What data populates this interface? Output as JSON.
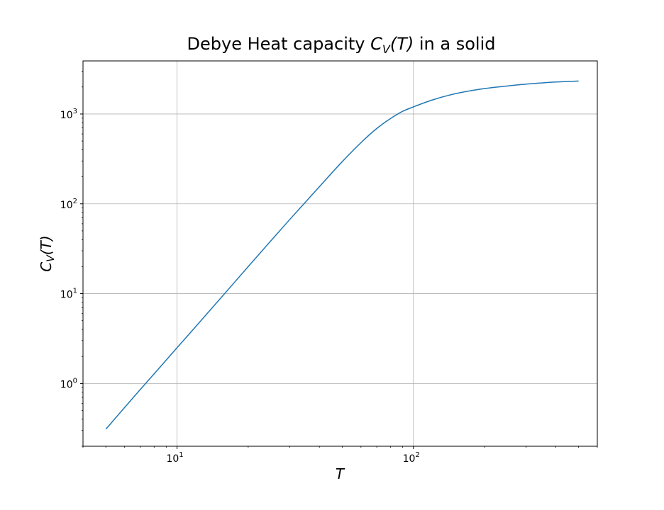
{
  "chart_data": {
    "type": "line",
    "title": {
      "prefix": "Debye Heat capacity ",
      "math_main": "C",
      "math_sub": "V",
      "math_args": "(T)",
      "suffix": " in a solid"
    },
    "xlabel": "T",
    "ylabel": {
      "main": "C",
      "sub": "V",
      "args": "(T)"
    },
    "x_scale": "log",
    "y_scale": "log",
    "xlim": [
      4.0,
      600.0
    ],
    "ylim": [
      0.2,
      3900.0
    ],
    "grid": true,
    "x_ticks": [
      {
        "value": 10,
        "base": "10",
        "exp": "1"
      },
      {
        "value": 100,
        "base": "10",
        "exp": "2"
      }
    ],
    "y_ticks": [
      {
        "value": 1,
        "base": "10",
        "exp": "0"
      },
      {
        "value": 10,
        "base": "10",
        "exp": "1"
      },
      {
        "value": 100,
        "base": "10",
        "exp": "2"
      },
      {
        "value": 1000,
        "base": "10",
        "exp": "3"
      }
    ],
    "series": [
      {
        "color": "#1f77b4",
        "x": [
          5,
          6,
          7,
          8,
          10,
          12,
          15,
          20,
          25,
          30,
          35,
          40,
          50,
          60,
          70,
          80,
          90,
          100,
          120,
          150,
          200,
          250,
          300,
          400,
          500
        ],
        "y": [
          0.31,
          0.54,
          0.86,
          1.28,
          2.5,
          4.3,
          8.4,
          20,
          39,
          67,
          105,
          155,
          295,
          480,
          690,
          890,
          1070,
          1200,
          1430,
          1680,
          1920,
          2050,
          2150,
          2270,
          2330
        ]
      }
    ]
  }
}
